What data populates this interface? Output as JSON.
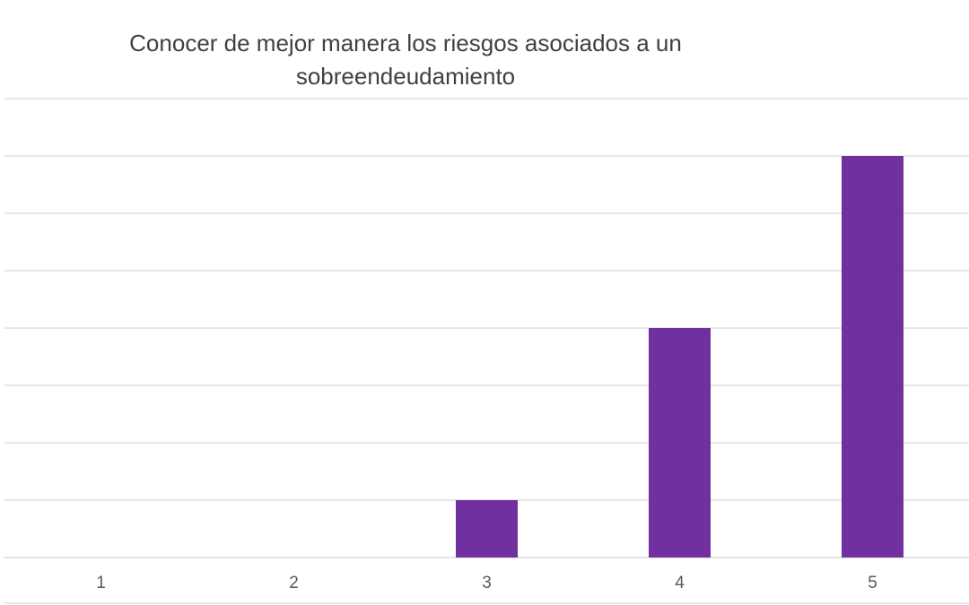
{
  "chart_data": {
    "type": "bar",
    "title": "Conocer de mejor manera los riesgos asociados a un sobreendeudamiento",
    "title_lines": [
      "Conocer de mejor manera los riesgos asociados a un",
      "sobreendeudamiento"
    ],
    "categories": [
      "1",
      "2",
      "3",
      "4",
      "5"
    ],
    "values": [
      0,
      0,
      1,
      4,
      7
    ],
    "ylim": [
      0,
      8
    ],
    "grid": true,
    "legend": "none",
    "bar_color": "#7030a0",
    "grid_color": "#d9d9d9"
  }
}
